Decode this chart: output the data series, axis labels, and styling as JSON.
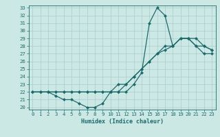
{
  "xlabel": "Humidex (Indice chaleur)",
  "bg_color": "#cce8e4",
  "line_color": "#1a6b6b",
  "grid_color": "#aacccc",
  "xlim": [
    -0.5,
    23.5
  ],
  "ylim": [
    19.7,
    33.3
  ],
  "xticks": [
    0,
    1,
    2,
    3,
    4,
    5,
    6,
    7,
    8,
    9,
    10,
    11,
    12,
    13,
    14,
    15,
    16,
    17,
    18,
    19,
    20,
    21,
    22,
    23
  ],
  "yticks": [
    20,
    21,
    22,
    23,
    24,
    25,
    26,
    27,
    28,
    29,
    30,
    31,
    32,
    33
  ],
  "curve1_x": [
    0,
    1,
    2,
    3,
    4,
    5,
    6,
    7,
    8,
    9,
    10,
    11,
    12,
    13,
    14,
    15,
    16,
    17,
    18,
    19,
    20,
    21,
    22,
    23
  ],
  "curve1_y": [
    22,
    22,
    22,
    21.5,
    21,
    21,
    20.5,
    20,
    20,
    20.5,
    22,
    22,
    22,
    23,
    24.5,
    31,
    33,
    32,
    28,
    29,
    29,
    28,
    27,
    27
  ],
  "curve2_x": [
    0,
    1,
    2,
    3,
    4,
    5,
    6,
    7,
    8,
    9,
    10,
    11,
    12,
    13,
    14,
    15,
    16,
    17,
    18,
    19,
    20,
    21,
    22,
    23
  ],
  "curve2_y": [
    22,
    22,
    22,
    22,
    22,
    22,
    22,
    22,
    22,
    22,
    22,
    22,
    23,
    24,
    25,
    26,
    27,
    27.5,
    28,
    29,
    29,
    28,
    28,
    27.5
  ],
  "curve3_x": [
    0,
    1,
    2,
    3,
    4,
    5,
    6,
    7,
    8,
    9,
    10,
    11,
    12,
    13,
    14,
    15,
    16,
    17,
    18,
    19,
    20,
    21,
    22,
    23
  ],
  "curve3_y": [
    22,
    22,
    22,
    22,
    22,
    22,
    22,
    22,
    22,
    22,
    22,
    23,
    23,
    24,
    25,
    26,
    27,
    28,
    28,
    29,
    29,
    29,
    28,
    27.5
  ]
}
